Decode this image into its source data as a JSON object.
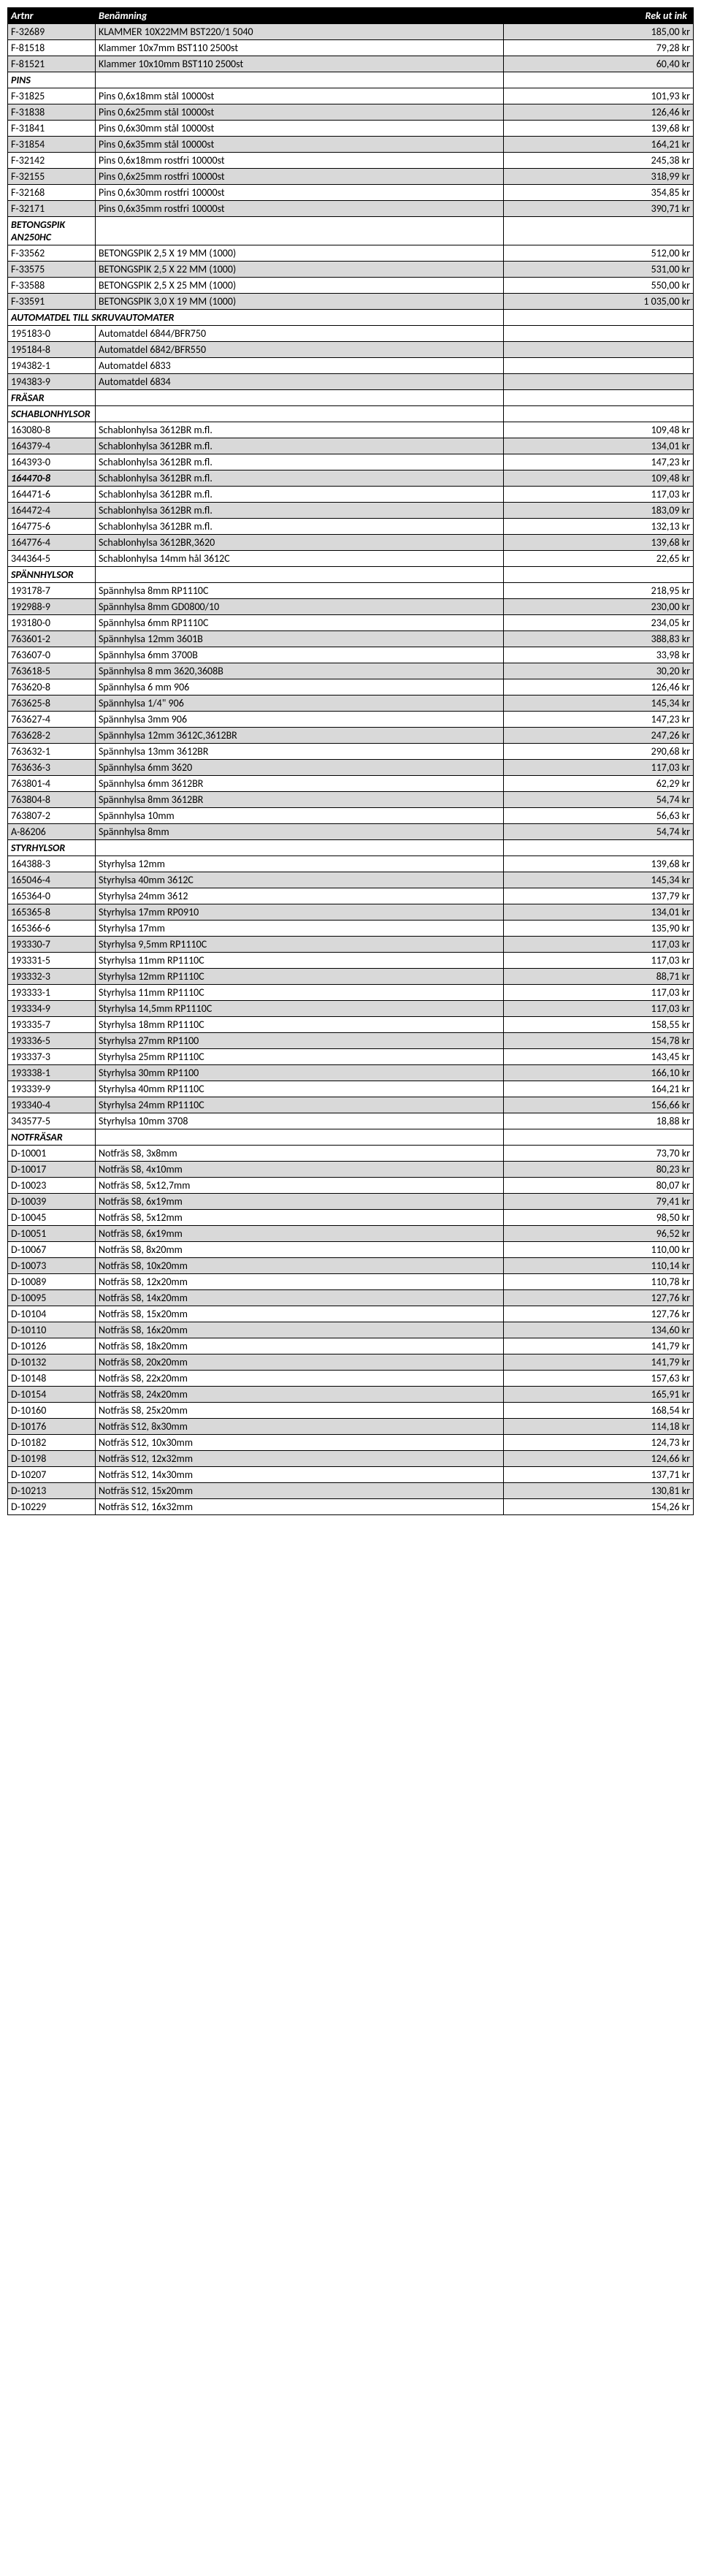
{
  "h": [
    "Artnr",
    "Benämning",
    "Rek ut ink"
  ],
  "sections": [
    {
      "rows": [
        [
          "F-32689",
          "KLAMMER 10X22MM BST220/1 5040",
          "185,00 kr",
          1,
          0
        ],
        [
          "F-81518",
          "Klammer 10x7mm BST110 2500st",
          "79,28 kr",
          0,
          0
        ],
        [
          "F-81521",
          "Klammer 10x10mm BST110 2500st",
          "60,40 kr",
          1,
          0
        ]
      ]
    },
    {
      "title": "PINS",
      "rows": [
        [
          "F-31825",
          "Pins 0,6x18mm stål 10000st",
          "101,93 kr",
          0,
          0
        ],
        [
          "F-31838",
          "Pins 0,6x25mm stål 10000st",
          "126,46 kr",
          1,
          0
        ],
        [
          "F-31841",
          "Pins 0,6x30mm stål 10000st",
          "139,68 kr",
          0,
          0
        ],
        [
          "F-31854",
          "Pins 0,6x35mm stål 10000st",
          "164,21 kr",
          1,
          0
        ],
        [
          "F-32142",
          "Pins 0,6x18mm rostfri 10000st",
          "245,38 kr",
          0,
          0
        ],
        [
          "F-32155",
          "Pins 0,6x25mm rostfri 10000st",
          "318,99 kr",
          1,
          0
        ],
        [
          "F-32168",
          "Pins 0,6x30mm rostfri 10000st",
          "354,85 kr",
          0,
          0
        ],
        [
          "F-32171",
          "Pins 0,6x35mm rostfri 10000st",
          "390,71 kr",
          1,
          0
        ]
      ]
    },
    {
      "title": "BETONGSPIK AN250HC",
      "rows": [
        [
          "F-33562",
          "BETONGSPIK 2,5 X 19 MM (1000)",
          "512,00 kr",
          0,
          0
        ],
        [
          "F-33575",
          "BETONGSPIK 2,5 X 22 MM (1000)",
          "531,00 kr",
          1,
          0
        ],
        [
          "F-33588",
          "BETONGSPIK 2,5 X 25 MM (1000)",
          "550,00 kr",
          0,
          0
        ],
        [
          "F-33591",
          "BETONGSPIK 3,0 X 19 MM (1000)",
          "1 035,00 kr",
          1,
          0
        ]
      ]
    },
    {
      "title": "AUTOMATDEL TILL SKRUVAUTOMATER",
      "rows": [
        [
          "195183-0",
          "Automatdel 6844/BFR750",
          "",
          0,
          0
        ],
        [
          "195184-8",
          "Automatdel 6842/BFR550",
          "",
          1,
          0
        ],
        [
          "194382-1",
          "Automatdel 6833",
          "",
          0,
          0
        ],
        [
          "194383-9",
          "Automatdel 6834",
          "",
          1,
          0
        ]
      ]
    },
    {
      "title": "FRÄSAR",
      "rows": []
    },
    {
      "title": "SCHABLONHYLSOR",
      "rows": [
        [
          "163080-8",
          "Schablonhylsa 3612BR m.fl.",
          "109,48 kr",
          0,
          0
        ],
        [
          "164379-4",
          "Schablonhylsa 3612BR m.fl.",
          "134,01 kr",
          1,
          0
        ],
        [
          "164393-0",
          "Schablonhylsa 3612BR m.fl.",
          "147,23 kr",
          0,
          0
        ],
        [
          "164470-8",
          "Schablonhylsa 3612BR m.fl.",
          "109,48 kr",
          1,
          1
        ],
        [
          "164471-6",
          "Schablonhylsa 3612BR m.fl.",
          "117,03 kr",
          0,
          0
        ],
        [
          "164472-4",
          "Schablonhylsa 3612BR m.fl.",
          "183,09 kr",
          1,
          0
        ],
        [
          "164775-6",
          "Schablonhylsa 3612BR m.fl.",
          "132,13 kr",
          0,
          0
        ],
        [
          "164776-4",
          "Schablonhylsa 3612BR,3620",
          "139,68 kr",
          1,
          0
        ],
        [
          "344364-5",
          "Schablonhylsa 14mm hål 3612C",
          "22,65 kr",
          0,
          0
        ]
      ]
    },
    {
      "title": "SPÄNNHYLSOR",
      "rows": [
        [
          "193178-7",
          "Spännhylsa 8mm RP1110C",
          "218,95 kr",
          0,
          0
        ],
        [
          "192988-9",
          "Spännhylsa 8mm GD0800/10",
          "230,00 kr",
          1,
          0
        ],
        [
          "193180-0",
          "Spännhylsa 6mm RP1110C",
          "234,05 kr",
          0,
          0
        ],
        [
          "763601-2",
          "Spännhylsa 12mm 3601B",
          "388,83 kr",
          1,
          0
        ],
        [
          "763607-0",
          "Spännhylsa 6mm 3700B",
          "33,98 kr",
          0,
          0
        ],
        [
          "763618-5",
          "Spännhylsa 8 mm 3620,3608B",
          "30,20 kr",
          1,
          0
        ],
        [
          "763620-8",
          "Spännhylsa 6 mm 906",
          "126,46 kr",
          0,
          0
        ],
        [
          "763625-8",
          "Spännhylsa 1/4\" 906",
          "145,34 kr",
          1,
          0
        ],
        [
          "763627-4",
          "Spännhylsa 3mm 906",
          "147,23 kr",
          0,
          0
        ],
        [
          "763628-2",
          "Spännhylsa 12mm 3612C,3612BR",
          "247,26 kr",
          1,
          0
        ],
        [
          "763632-1",
          "Spännhylsa 13mm 3612BR",
          "290,68 kr",
          0,
          0
        ],
        [
          "763636-3",
          "Spännhylsa 6mm 3620",
          "117,03 kr",
          1,
          0
        ],
        [
          "763801-4",
          "Spännhylsa 6mm 3612BR",
          "62,29 kr",
          0,
          0
        ],
        [
          "763804-8",
          "Spännhylsa 8mm 3612BR",
          "54,74 kr",
          1,
          0
        ],
        [
          "763807-2",
          "Spännhylsa 10mm",
          "56,63 kr",
          0,
          0
        ],
        [
          "A-86206",
          "Spännhylsa 8mm",
          "54,74 kr",
          1,
          0
        ]
      ]
    },
    {
      "title": "STYRHYLSOR",
      "rows": [
        [
          "164388-3",
          "Styrhylsa 12mm",
          "139,68 kr",
          0,
          0
        ],
        [
          "165046-4",
          "Styrhylsa 40mm 3612C",
          "145,34 kr",
          1,
          0
        ],
        [
          "165364-0",
          "Styrhylsa 24mm 3612",
          "137,79 kr",
          0,
          0
        ],
        [
          "165365-8",
          "Styrhylsa 17mm RP0910",
          "134,01 kr",
          1,
          0
        ],
        [
          "165366-6",
          "Styrhylsa 17mm",
          "135,90 kr",
          0,
          0
        ],
        [
          "193330-7",
          "Styrhylsa 9,5mm RP1110C",
          "117,03 kr",
          1,
          0
        ],
        [
          "193331-5",
          "Styrhylsa 11mm RP1110C",
          "117,03 kr",
          0,
          0
        ],
        [
          "193332-3",
          "Styrhylsa 12mm RP1110C",
          "88,71 kr",
          1,
          0
        ],
        [
          "193333-1",
          "Styrhylsa 11mm RP1110C",
          "117,03 kr",
          0,
          0
        ],
        [
          "193334-9",
          "Styrhylsa 14,5mm RP1110C",
          "117,03 kr",
          1,
          0
        ],
        [
          "193335-7",
          "Styrhylsa 18mm RP1110C",
          "158,55 kr",
          0,
          0
        ],
        [
          "193336-5",
          "Styrhylsa 27mm RP1100",
          "154,78 kr",
          1,
          0
        ],
        [
          "193337-3",
          "Styrhylsa 25mm RP1110C",
          "143,45 kr",
          0,
          0
        ],
        [
          "193338-1",
          "Styrhylsa 30mm RP1100",
          "166,10 kr",
          1,
          0
        ],
        [
          "193339-9",
          "Styrhylsa 40mm RP1110C",
          "164,21 kr",
          0,
          0
        ],
        [
          "193340-4",
          "Styrhylsa 24mm RP1110C",
          "156,66 kr",
          1,
          0
        ],
        [
          "343577-5",
          "Styrhylsa 10mm 3708",
          "18,88 kr",
          0,
          0
        ]
      ]
    },
    {
      "title": "NOTFRÄSAR",
      "rows": [
        [
          "D-10001",
          "Notfräs S8, 3x8mm",
          "73,70 kr",
          0,
          0
        ],
        [
          "D-10017",
          "Notfräs S8, 4x10mm",
          "80,23 kr",
          1,
          0
        ],
        [
          "D-10023",
          "Notfräs S8, 5x12,7mm",
          "80,07 kr",
          0,
          0
        ],
        [
          "D-10039",
          "Notfräs S8, 6x19mm",
          "79,41 kr",
          1,
          0
        ],
        [
          "D-10045",
          "Notfräs S8, 5x12mm",
          "98,50 kr",
          0,
          0
        ],
        [
          "D-10051",
          "Notfräs S8, 6x19mm",
          "96,52 kr",
          1,
          0
        ],
        [
          "D-10067",
          "Notfräs S8, 8x20mm",
          "110,00 kr",
          0,
          0
        ],
        [
          "D-10073",
          "Notfräs S8, 10x20mm",
          "110,14 kr",
          1,
          0
        ],
        [
          "D-10089",
          "Notfräs S8, 12x20mm",
          "110,78 kr",
          0,
          0
        ],
        [
          "D-10095",
          "Notfräs S8, 14x20mm",
          "127,76 kr",
          1,
          0
        ],
        [
          "D-10104",
          "Notfräs S8, 15x20mm",
          "127,76 kr",
          0,
          0
        ],
        [
          "D-10110",
          "Notfräs S8, 16x20mm",
          "134,60 kr",
          1,
          0
        ],
        [
          "D-10126",
          "Notfräs S8, 18x20mm",
          "141,79 kr",
          0,
          0
        ],
        [
          "D-10132",
          "Notfräs S8, 20x20mm",
          "141,79 kr",
          1,
          0
        ],
        [
          "D-10148",
          "Notfräs S8, 22x20mm",
          "157,63 kr",
          0,
          0
        ],
        [
          "D-10154",
          "Notfräs S8, 24x20mm",
          "165,91 kr",
          1,
          0
        ],
        [
          "D-10160",
          "Notfräs S8, 25x20mm",
          "168,54 kr",
          0,
          0
        ],
        [
          "D-10176",
          "Notfräs S12, 8x30mm",
          "114,18 kr",
          1,
          0
        ],
        [
          "D-10182",
          "Notfräs S12, 10x30mm",
          "124,73 kr",
          0,
          0
        ],
        [
          "D-10198",
          "Notfräs S12, 12x32mm",
          "124,66 kr",
          1,
          0
        ],
        [
          "D-10207",
          "Notfräs S12, 14x30mm",
          "137,71 kr",
          0,
          0
        ],
        [
          "D-10213",
          "Notfräs S12, 15x20mm",
          "130,81 kr",
          1,
          0
        ],
        [
          "D-10229",
          "Notfräs S12, 16x32mm",
          "154,26 kr",
          0,
          0
        ]
      ]
    }
  ]
}
